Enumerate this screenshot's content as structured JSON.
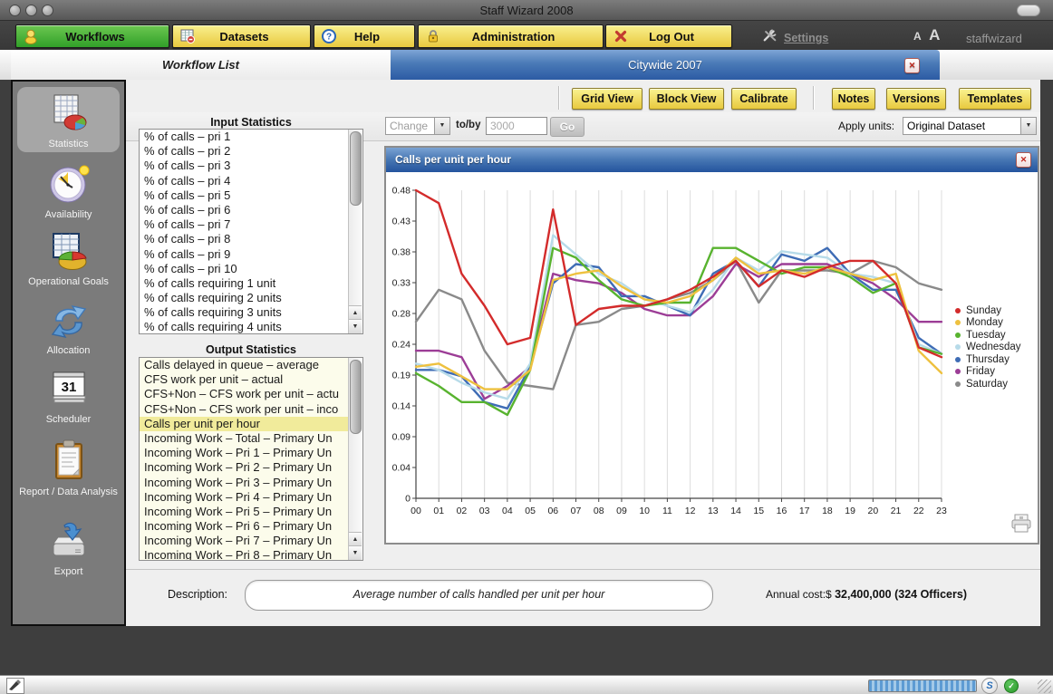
{
  "window": {
    "title": "Staff Wizard 2008"
  },
  "menu": {
    "items": [
      {
        "label": "Workflows",
        "icon": "workflows-icon",
        "active": true
      },
      {
        "label": "Datasets",
        "icon": "datasets-icon"
      },
      {
        "label": "Help",
        "icon": "help-icon"
      },
      {
        "label": "Administration",
        "icon": "lock-icon"
      },
      {
        "label": "Log Out",
        "icon": "logout-x-icon"
      }
    ],
    "settings_label": "Settings",
    "font_small": "A",
    "font_large": "A",
    "username": "staffwizard"
  },
  "tabs": [
    {
      "label": "Workflow List",
      "active": false
    },
    {
      "label": "Citywide 2007",
      "active": true,
      "closable": true
    }
  ],
  "sidebar": {
    "items": [
      {
        "label": "Statistics",
        "icon": "statistics-icon",
        "selected": true
      },
      {
        "label": "Availability",
        "icon": "availability-clock-icon"
      },
      {
        "label": "Operational Goals",
        "icon": "operational-goals-icon"
      },
      {
        "label": "Allocation",
        "icon": "allocation-arrows-icon"
      },
      {
        "label": "Scheduler",
        "icon": "scheduler-calendar-icon"
      },
      {
        "label": "Report / Data Analysis",
        "icon": "report-clipboard-icon"
      },
      {
        "label": "Export",
        "icon": "export-drive-icon"
      }
    ]
  },
  "toolbar": {
    "buttons": [
      "Grid View",
      "Block View",
      "Calibrate",
      "Notes",
      "Versions",
      "Templates"
    ]
  },
  "controls": {
    "change_select": "Change",
    "toby_label": "to/by",
    "toby_value": "3000",
    "go_label": "Go",
    "apply_units_label": "Apply units:",
    "apply_units_value": "Original Dataset"
  },
  "lists": {
    "input": {
      "title": "Input Statistics",
      "items": [
        "% of calls – pri 1",
        "% of calls – pri 2",
        "% of calls – pri 3",
        "% of calls – pri 4",
        "% of calls – pri 5",
        "% of calls – pri 6",
        "% of calls – pri 7",
        "% of calls – pri 8",
        "% of calls – pri 9",
        "% of calls – pri 10",
        "% of calls requiring 1 unit",
        "% of calls requiring 2 units",
        "% of calls requiring 3 units",
        "% of calls requiring 4 units"
      ]
    },
    "output": {
      "title": "Output Statistics",
      "selected_index": 4,
      "items": [
        "Calls delayed in queue – average",
        "CFS work per unit – actual",
        "CFS+Non – CFS work per unit – actu",
        "CFS+Non – CFS work per unit – inco",
        "Calls per unit per hour",
        "Incoming Work – Total – Primary Un",
        "Incoming Work – Pri 1 – Primary Un",
        "Incoming Work – Pri 2 – Primary Un",
        "Incoming Work – Pri 3 – Primary Un",
        "Incoming Work – Pri 4 – Primary Un",
        "Incoming Work – Pri 5 – Primary Un",
        "Incoming Work – Pri 6 – Primary Un",
        "Incoming Work – Pri 7 – Primary Un",
        "Incoming Work – Pri 8 – Primary Un"
      ]
    }
  },
  "chart_data": {
    "type": "line",
    "title": "Calls per unit per hour",
    "x": [
      "00",
      "01",
      "02",
      "03",
      "04",
      "05",
      "06",
      "07",
      "08",
      "09",
      "10",
      "11",
      "12",
      "13",
      "14",
      "15",
      "16",
      "17",
      "18",
      "19",
      "20",
      "21",
      "22",
      "23"
    ],
    "xlabel": "",
    "ylabel": "",
    "ylim": [
      0,
      0.48
    ],
    "ytick_labels_top_down": [
      "0.48",
      "0.43",
      "0.38",
      "0.33",
      "0.28",
      "0.24",
      "0.19",
      "0.14",
      "0.09",
      "0.04",
      "0"
    ],
    "grid": "vertical",
    "legend_position": "right",
    "series": [
      {
        "name": "Sunday",
        "color": "#d32b2b",
        "values": [
          0.48,
          0.46,
          0.35,
          0.3,
          0.24,
          0.25,
          0.45,
          0.27,
          0.295,
          0.3,
          0.3,
          0.31,
          0.325,
          0.345,
          0.37,
          0.33,
          0.355,
          0.345,
          0.36,
          0.37,
          0.37,
          0.335,
          0.235,
          0.22
        ]
      },
      {
        "name": "Monday",
        "color": "#eec13f",
        "values": [
          0.205,
          0.21,
          0.19,
          0.17,
          0.17,
          0.2,
          0.34,
          0.35,
          0.355,
          0.33,
          0.31,
          0.305,
          0.315,
          0.34,
          0.375,
          0.35,
          0.355,
          0.35,
          0.36,
          0.35,
          0.34,
          0.35,
          0.23,
          0.195
        ]
      },
      {
        "name": "Tuesday",
        "color": "#58b32f",
        "values": [
          0.195,
          0.175,
          0.15,
          0.15,
          0.13,
          0.2,
          0.39,
          0.375,
          0.34,
          0.31,
          0.3,
          0.305,
          0.305,
          0.39,
          0.39,
          0.37,
          0.35,
          0.36,
          0.36,
          0.345,
          0.32,
          0.335,
          0.235,
          0.225
        ]
      },
      {
        "name": "Wednesday",
        "color": "#b7dbe9",
        "values": [
          0.21,
          0.2,
          0.18,
          0.165,
          0.155,
          0.21,
          0.41,
          0.38,
          0.35,
          0.335,
          0.31,
          0.3,
          0.29,
          0.325,
          0.375,
          0.355,
          0.385,
          0.38,
          0.375,
          0.35,
          0.345,
          0.335,
          0.24,
          0.225
        ]
      },
      {
        "name": "Thursday",
        "color": "#3e6cb5",
        "values": [
          0.2,
          0.2,
          0.19,
          0.15,
          0.14,
          0.205,
          0.335,
          0.365,
          0.36,
          0.315,
          0.315,
          0.3,
          0.285,
          0.35,
          0.37,
          0.33,
          0.38,
          0.37,
          0.39,
          0.35,
          0.325,
          0.325,
          0.25,
          0.225
        ]
      },
      {
        "name": "Friday",
        "color": "#9c3d96",
        "values": [
          0.23,
          0.23,
          0.22,
          0.155,
          0.175,
          0.205,
          0.35,
          0.34,
          0.335,
          0.32,
          0.295,
          0.285,
          0.285,
          0.315,
          0.365,
          0.345,
          0.365,
          0.365,
          0.365,
          0.35,
          0.335,
          0.31,
          0.275,
          0.275
        ]
      },
      {
        "name": "Saturday",
        "color": "#8a8a8a",
        "values": [
          0.275,
          0.325,
          0.31,
          0.23,
          0.18,
          0.175,
          0.17,
          0.27,
          0.275,
          0.295,
          0.3,
          0.31,
          0.32,
          0.34,
          0.37,
          0.305,
          0.355,
          0.355,
          0.355,
          0.35,
          0.37,
          0.36,
          0.335,
          0.325
        ]
      }
    ]
  },
  "footer": {
    "description_label": "Description:",
    "description": "Average number of calls handled per unit per hour",
    "annual_cost_label": "Annual cost:$ ",
    "annual_cost_value": "32,400,000 (324 Officers)"
  },
  "status": {
    "s_label": "S"
  }
}
